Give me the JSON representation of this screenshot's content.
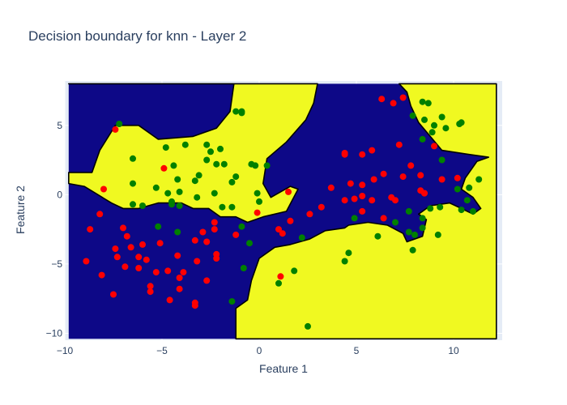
{
  "chart_data": {
    "type": "scatter",
    "title": "Decision boundary for knn - Layer 2",
    "xlabel": "Feature 1",
    "ylabel": "Feature 2",
    "xlim": [
      -10,
      12.5
    ],
    "ylim": [
      -10.5,
      8.2
    ],
    "x_ticks": [
      -10,
      -5,
      0,
      5,
      10
    ],
    "y_ticks": [
      -10,
      -5,
      0,
      5
    ],
    "x_tick_labels": [
      "−10",
      "−5",
      "0",
      "5",
      "10"
    ],
    "y_tick_labels": [
      "−10",
      "−5",
      "0",
      "5"
    ],
    "grid": true,
    "legend": "none",
    "colors": {
      "region_a": "#0d0887",
      "region_b": "#f0f921",
      "class_red": "#ff0000",
      "class_green": "#008000",
      "plot_bg": "#e5ecf6",
      "grid": "#ffffff"
    },
    "boundary_regions": [
      {
        "class": "yellow",
        "polygon": [
          [
            -9.8,
            8
          ],
          [
            -1.3,
            8
          ],
          [
            -1.5,
            6
          ],
          [
            -2.2,
            4.8
          ],
          [
            -3.4,
            4.2
          ],
          [
            -5.2,
            4
          ],
          [
            -6.2,
            5
          ],
          [
            -7.4,
            5
          ],
          [
            -8.2,
            3.2
          ],
          [
            -8.6,
            1.6
          ],
          [
            -9.8,
            1.6
          ],
          [
            -9.8,
            0.8
          ],
          [
            -9,
            0.6
          ],
          [
            -7.6,
            -0.6
          ],
          [
            -7,
            -1
          ],
          [
            -6.2,
            -1
          ],
          [
            -5.2,
            -0.6
          ],
          [
            -4,
            -0.6
          ],
          [
            -3.4,
            -1
          ],
          [
            -2.6,
            -1
          ],
          [
            -2,
            -1.6
          ],
          [
            -1.2,
            -1.6
          ],
          [
            -0.6,
            -2
          ],
          [
            0.2,
            -1.6
          ],
          [
            1.4,
            -1.2
          ],
          [
            2,
            0.4
          ],
          [
            1.6,
            0.6
          ],
          [
            0.6,
            -0.2
          ],
          [
            0.2,
            0.8
          ],
          [
            0.4,
            2.6
          ],
          [
            1.4,
            3.8
          ],
          [
            2.4,
            5.4
          ],
          [
            2.8,
            6.6
          ],
          [
            3,
            8
          ]
        ]
      },
      {
        "class": "yellow",
        "polygon": [
          [
            7.2,
            8
          ],
          [
            12.2,
            8
          ],
          [
            12.2,
            -10.4
          ],
          [
            -1.2,
            -10.4
          ],
          [
            -1.2,
            -8.2
          ],
          [
            -0.6,
            -7.6
          ],
          [
            -0.4,
            -6.2
          ],
          [
            0,
            -4.6
          ],
          [
            0.8,
            -3.8
          ],
          [
            1.6,
            -3.6
          ],
          [
            2.6,
            -3.2
          ],
          [
            3.4,
            -2.6
          ],
          [
            4.4,
            -2.4
          ],
          [
            4.6,
            -2.2
          ],
          [
            5.6,
            -2
          ],
          [
            6.6,
            -2.2
          ],
          [
            7.4,
            -2.8
          ],
          [
            7.6,
            -3.4
          ],
          [
            8.4,
            -3
          ],
          [
            8.6,
            -1.8
          ],
          [
            8.2,
            -1.4
          ],
          [
            8.8,
            -0.8
          ],
          [
            9.8,
            -0.6
          ],
          [
            10.4,
            -1
          ],
          [
            11,
            -1.4
          ],
          [
            11.4,
            -1
          ],
          [
            11,
            -0.2
          ],
          [
            10.4,
            0.4
          ],
          [
            10.6,
            1.2
          ],
          [
            11.2,
            2.4
          ],
          [
            11.8,
            2.7
          ],
          [
            10.8,
            2.9
          ],
          [
            9.4,
            3.2
          ],
          [
            8.8,
            4.2
          ],
          [
            8.2,
            5.2
          ],
          [
            7.8,
            6.4
          ],
          [
            7.6,
            7.4
          ]
        ]
      }
    ],
    "series": [
      {
        "class": "red",
        "points": [
          [
            -7.4,
            4.7
          ],
          [
            -4.9,
            1.9
          ],
          [
            -8,
            0.4
          ],
          [
            -8.2,
            -1.4
          ],
          [
            -8.7,
            -2.5
          ],
          [
            -7,
            -2.4
          ],
          [
            -6.8,
            -3
          ],
          [
            -7.4,
            -3.9
          ],
          [
            -6.6,
            -3.8
          ],
          [
            -6,
            -3.6
          ],
          [
            -5.1,
            -3.5
          ],
          [
            -3.3,
            -3.3
          ],
          [
            -2.9,
            -2.7
          ],
          [
            -2.3,
            -2
          ],
          [
            -2.3,
            -2.5
          ],
          [
            -2.7,
            -3.4
          ],
          [
            -1.2,
            -2.9
          ],
          [
            -0.1,
            -1.3
          ],
          [
            -8.9,
            -4.8
          ],
          [
            -7.3,
            -4.5
          ],
          [
            -6.2,
            -4.5
          ],
          [
            -6.2,
            -5.3
          ],
          [
            -5.8,
            -4.7
          ],
          [
            -6.9,
            -5.2
          ],
          [
            -5.3,
            -5.6
          ],
          [
            -4.2,
            -4.4
          ],
          [
            -3.2,
            -4.8
          ],
          [
            -3.9,
            -5.6
          ],
          [
            -4.1,
            -6
          ],
          [
            -4.1,
            -6.8
          ],
          [
            -4.7,
            -5.5
          ],
          [
            -2.2,
            -4.3
          ],
          [
            -2.2,
            -4.6
          ],
          [
            -2.7,
            -6.2
          ],
          [
            -5.6,
            -6.6
          ],
          [
            -5.6,
            -7
          ],
          [
            -8.1,
            -5.8
          ],
          [
            -7.5,
            -7.2
          ],
          [
            -4.6,
            -7.6
          ],
          [
            -3.3,
            -7.8
          ],
          [
            -3.3,
            -8
          ],
          [
            1,
            -2.5
          ],
          [
            1.2,
            -2.8
          ],
          [
            1.6,
            -1.9
          ],
          [
            2.6,
            -1.4
          ],
          [
            3.2,
            -0.9
          ],
          [
            1.5,
            0.2
          ],
          [
            1.1,
            -5.9
          ],
          [
            3.7,
            0.5
          ],
          [
            4.4,
            -0.4
          ],
          [
            4.7,
            0.8
          ],
          [
            4.9,
            -0.3
          ],
          [
            5.3,
            0.7
          ],
          [
            5.3,
            -0.1
          ],
          [
            5.8,
            -0.4
          ],
          [
            5.3,
            -1.2
          ],
          [
            6.4,
            -1.7
          ],
          [
            6.8,
            -0.2
          ],
          [
            7,
            -0.4
          ],
          [
            5.9,
            1.1
          ],
          [
            6.4,
            1.5
          ],
          [
            7.4,
            1.3
          ],
          [
            8.3,
            1.4
          ],
          [
            8.5,
            0.1
          ],
          [
            8.3,
            0.3
          ],
          [
            7.8,
            2.1
          ],
          [
            9.4,
            1.1
          ],
          [
            10.2,
            1.2
          ],
          [
            7.2,
            3.6
          ],
          [
            9,
            3.5
          ],
          [
            4.4,
            3
          ],
          [
            4.4,
            2.9
          ],
          [
            5.3,
            2.9
          ],
          [
            5.8,
            3.2
          ],
          [
            6.3,
            6.9
          ],
          [
            6.9,
            6.6
          ],
          [
            7.4,
            7
          ],
          [
            8.5,
            0.1
          ]
        ]
      },
      {
        "class": "green",
        "points": [
          [
            -7.2,
            5.1
          ],
          [
            -6.5,
            2.6
          ],
          [
            -6.5,
            0.8
          ],
          [
            -6.5,
            -0.7
          ],
          [
            -6,
            -0.8
          ],
          [
            -5.3,
            0.5
          ],
          [
            -4.8,
            3.4
          ],
          [
            -4.4,
            2.1
          ],
          [
            -4.7,
            0.1
          ],
          [
            -4.5,
            -0.5
          ],
          [
            -4.5,
            -0.7
          ],
          [
            -4.2,
            1.1
          ],
          [
            -4.1,
            0.2
          ],
          [
            -4.1,
            -0.8
          ],
          [
            -3.8,
            3.6
          ],
          [
            -3.3,
            1
          ],
          [
            -3.1,
            1.4
          ],
          [
            -3.2,
            -0.2
          ],
          [
            -2.7,
            3.6
          ],
          [
            -2.7,
            2.5
          ],
          [
            -2.5,
            3.1
          ],
          [
            -2.2,
            2.2
          ],
          [
            -1.8,
            2.2
          ],
          [
            -1.4,
            0.9
          ],
          [
            -1.2,
            1.3
          ],
          [
            -2,
            3.3
          ],
          [
            -2.3,
            0.1
          ],
          [
            -1.9,
            -0.9
          ],
          [
            -1.4,
            -0.9
          ],
          [
            -1.2,
            6
          ],
          [
            -0.9,
            5.9
          ],
          [
            -0.9,
            6
          ],
          [
            -0.4,
            2.2
          ],
          [
            -0.2,
            2.1
          ],
          [
            0.4,
            2.1
          ],
          [
            -0.1,
            0.1
          ],
          [
            0,
            -0.5
          ],
          [
            -0.9,
            -2.3
          ],
          [
            -0.5,
            -3.5
          ],
          [
            -0.8,
            -5.3
          ],
          [
            -1.4,
            -7.7
          ],
          [
            -5.2,
            -2.3
          ],
          [
            -4.2,
            -2.7
          ],
          [
            2.2,
            -3.1
          ],
          [
            1.8,
            -5.5
          ],
          [
            1,
            -6.4
          ],
          [
            2.5,
            -9.5
          ],
          [
            4.4,
            -4.8
          ],
          [
            4.6,
            -4.2
          ],
          [
            4.9,
            -1.7
          ],
          [
            6.1,
            -3
          ],
          [
            7,
            -2
          ],
          [
            7.7,
            -1.2
          ],
          [
            7.7,
            -2.7
          ],
          [
            8,
            -2.9
          ],
          [
            7.9,
            -4
          ],
          [
            8.4,
            -2.4
          ],
          [
            8.4,
            -1.7
          ],
          [
            8.8,
            -1
          ],
          [
            9.2,
            -2.9
          ],
          [
            9.3,
            -0.9
          ],
          [
            10.2,
            0.4
          ],
          [
            10.7,
            -0.4
          ],
          [
            10.8,
            0.5
          ],
          [
            10.4,
            -1.1
          ],
          [
            11,
            -1.2
          ],
          [
            11.3,
            1.1
          ],
          [
            9.4,
            2.5
          ],
          [
            8.4,
            4
          ],
          [
            8.9,
            4.5
          ],
          [
            8.5,
            5.4
          ],
          [
            9,
            5
          ],
          [
            9.4,
            5.6
          ],
          [
            9.6,
            4.8
          ],
          [
            10.3,
            5.1
          ],
          [
            10.4,
            5.2
          ],
          [
            7.9,
            5.7
          ],
          [
            8.4,
            6.7
          ],
          [
            8.7,
            6.6
          ]
        ]
      }
    ]
  }
}
